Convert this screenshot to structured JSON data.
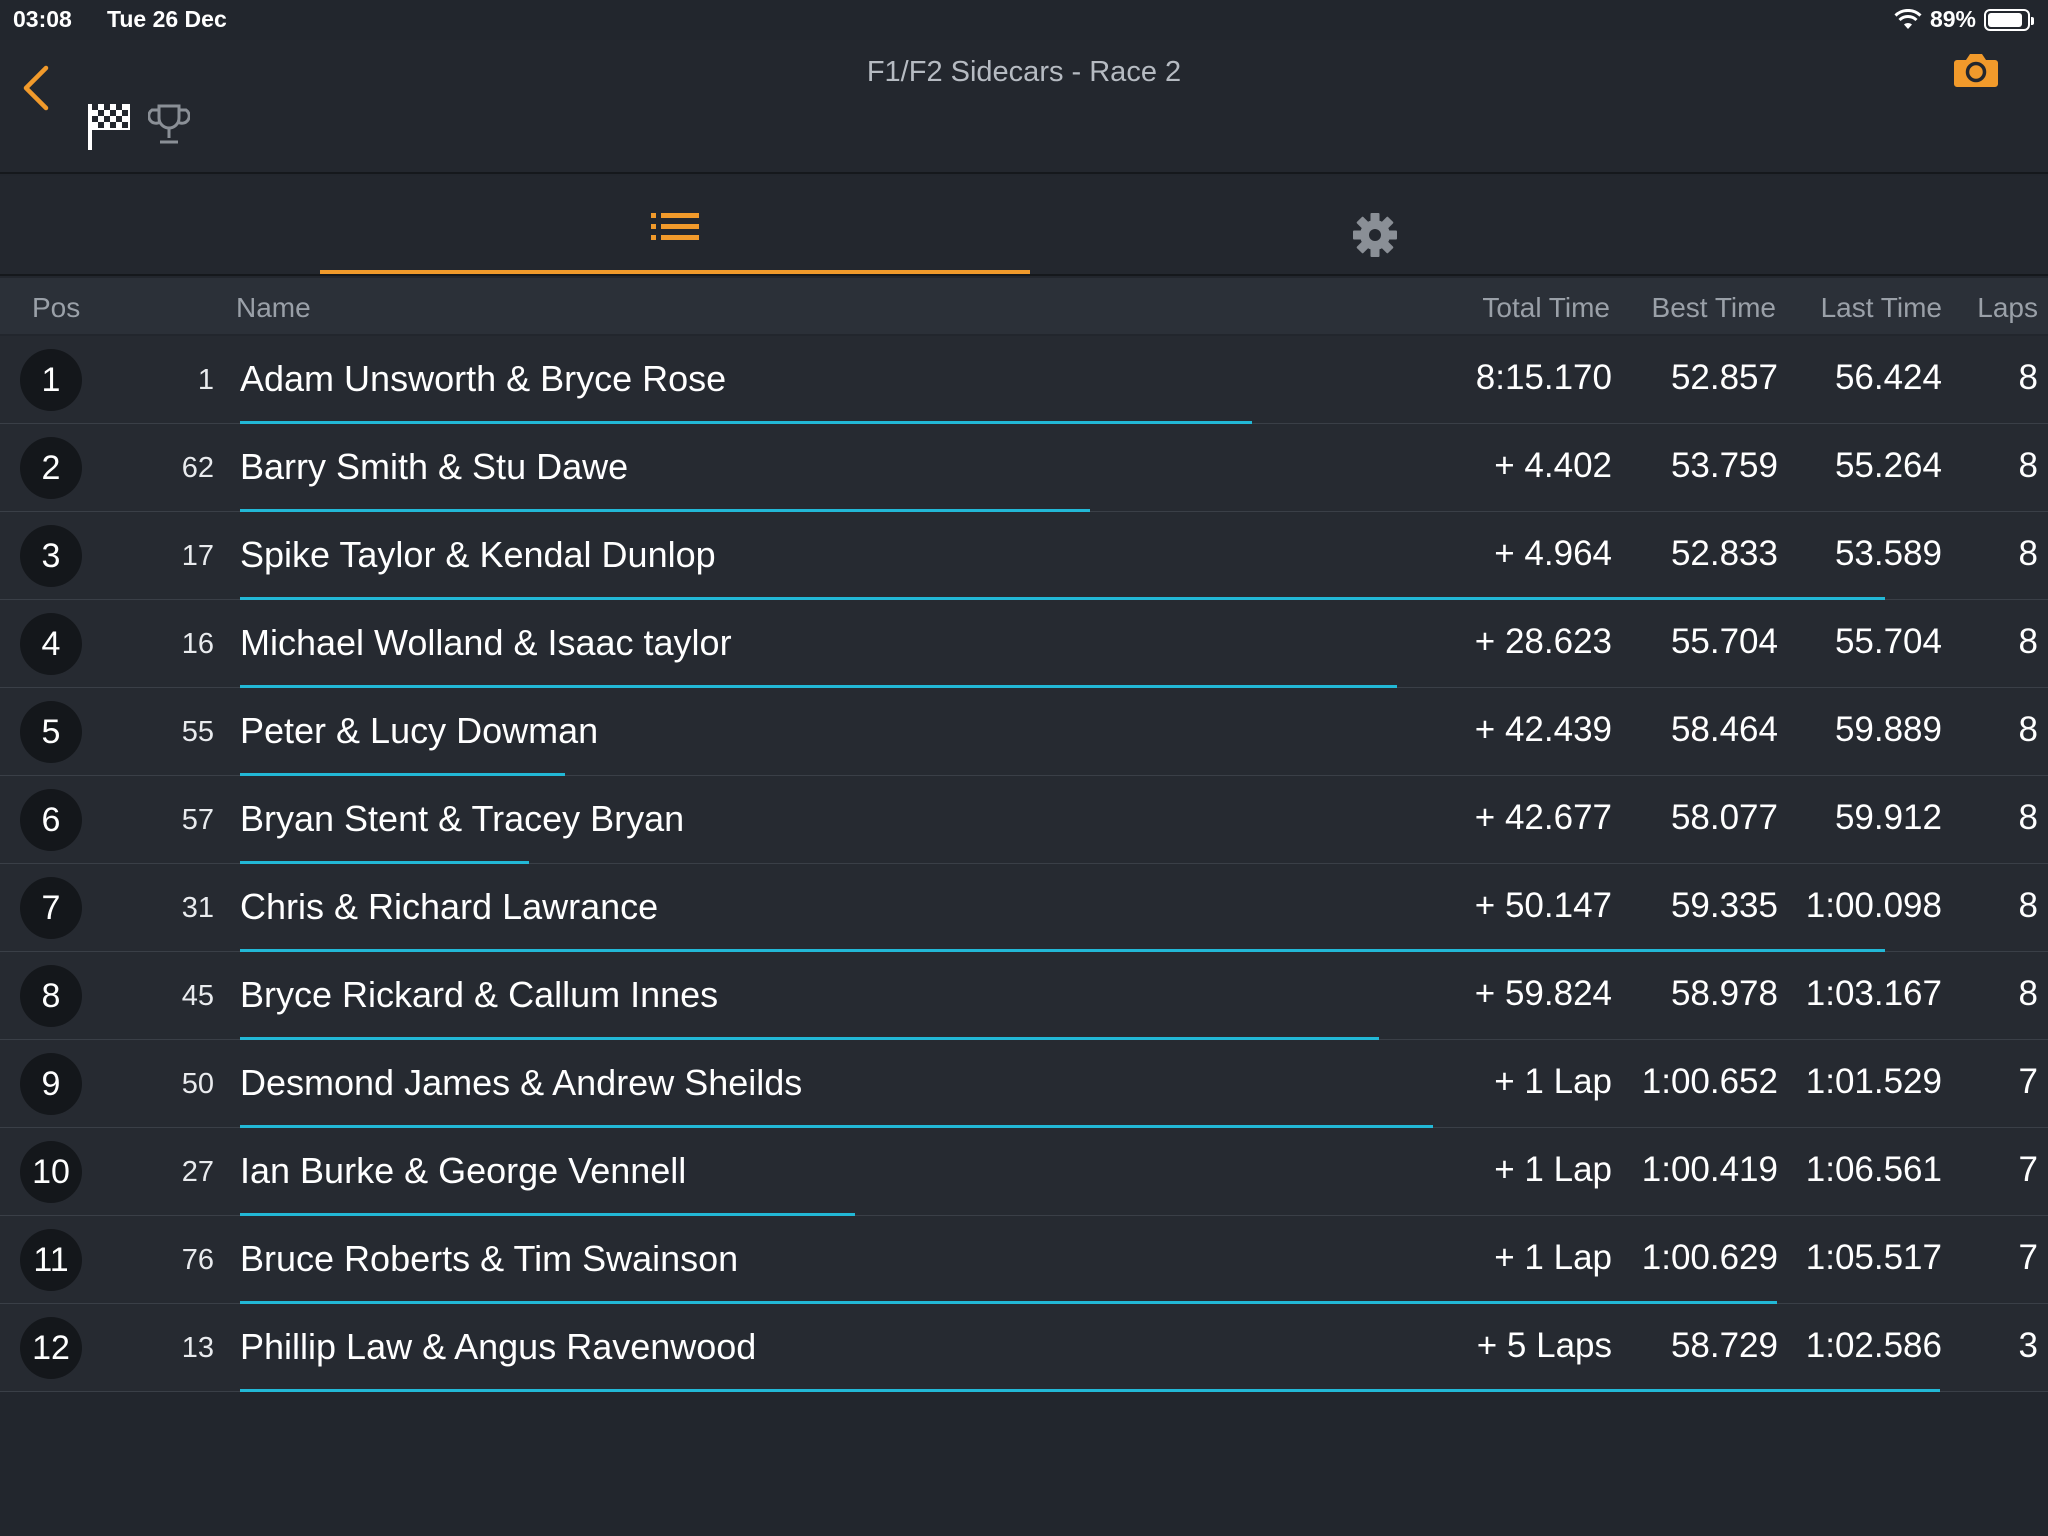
{
  "status": {
    "time": "03:08",
    "date": "Tue 26 Dec",
    "battery": "89%",
    "battery_level": 0.89
  },
  "header": {
    "title": "F1/F2 Sidecars - Race 2"
  },
  "tabs": {
    "active": "results-list",
    "items": [
      "list-icon",
      "gear-icon"
    ]
  },
  "colors": {
    "accent": "#f19a2b",
    "progress": "#22b8d6",
    "background": "#22262d"
  },
  "columns": {
    "pos": "Pos",
    "name": "Name",
    "total": "Total Time",
    "best": "Best Time",
    "last": "Last Time",
    "laps": "Laps"
  },
  "rows": [
    {
      "pos": "1",
      "num": "1",
      "name": "Adam Unsworth & Bryce Rose",
      "total": "8:15.170",
      "best": "52.857",
      "last": "56.424",
      "laps": "8",
      "progress": 0.56
    },
    {
      "pos": "2",
      "num": "62",
      "name": "Barry Smith & Stu Dawe",
      "total": "+ 4.402",
      "best": "53.759",
      "last": "55.264",
      "laps": "8",
      "progress": 0.47
    },
    {
      "pos": "3",
      "num": "17",
      "name": "Spike Taylor & Kendal Dunlop",
      "total": "+ 4.964",
      "best": "52.833",
      "last": "53.589",
      "laps": "8",
      "progress": 0.91
    },
    {
      "pos": "4",
      "num": "16",
      "name": "Michael Wolland & Isaac taylor",
      "total": "+ 28.623",
      "best": "55.704",
      "last": "55.704",
      "laps": "8",
      "progress": 0.64
    },
    {
      "pos": "5",
      "num": "55",
      "name": "Peter & Lucy Dowman",
      "total": "+ 42.439",
      "best": "58.464",
      "last": "59.889",
      "laps": "8",
      "progress": 0.18
    },
    {
      "pos": "6",
      "num": "57",
      "name": "Bryan Stent & Tracey Bryan",
      "total": "+ 42.677",
      "best": "58.077",
      "last": "59.912",
      "laps": "8",
      "progress": 0.16
    },
    {
      "pos": "7",
      "num": "31",
      "name": "Chris & Richard Lawrance",
      "total": "+ 50.147",
      "best": "59.335",
      "last": "1:00.098",
      "laps": "8",
      "progress": 0.91
    },
    {
      "pos": "8",
      "num": "45",
      "name": "Bryce Rickard & Callum Innes",
      "total": "+ 59.824",
      "best": "58.978",
      "last": "1:03.167",
      "laps": "8",
      "progress": 0.63
    },
    {
      "pos": "9",
      "num": "50",
      "name": "Desmond James & Andrew Sheilds",
      "total": "+ 1 Lap",
      "best": "1:00.652",
      "last": "1:01.529",
      "laps": "7",
      "progress": 0.66
    },
    {
      "pos": "10",
      "num": "27",
      "name": "Ian Burke & George Vennell",
      "total": "+ 1 Lap",
      "best": "1:00.419",
      "last": "1:06.561",
      "laps": "7",
      "progress": 0.34
    },
    {
      "pos": "11",
      "num": "76",
      "name": "Bruce Roberts & Tim Swainson",
      "total": "+ 1 Lap",
      "best": "1:00.629",
      "last": "1:05.517",
      "laps": "7",
      "progress": 0.85
    },
    {
      "pos": "12",
      "num": "13",
      "name": "Phillip Law & Angus Ravenwood",
      "total": "+ 5 Laps",
      "best": "58.729",
      "last": "1:02.586",
      "laps": "3",
      "progress": 0.94
    }
  ]
}
